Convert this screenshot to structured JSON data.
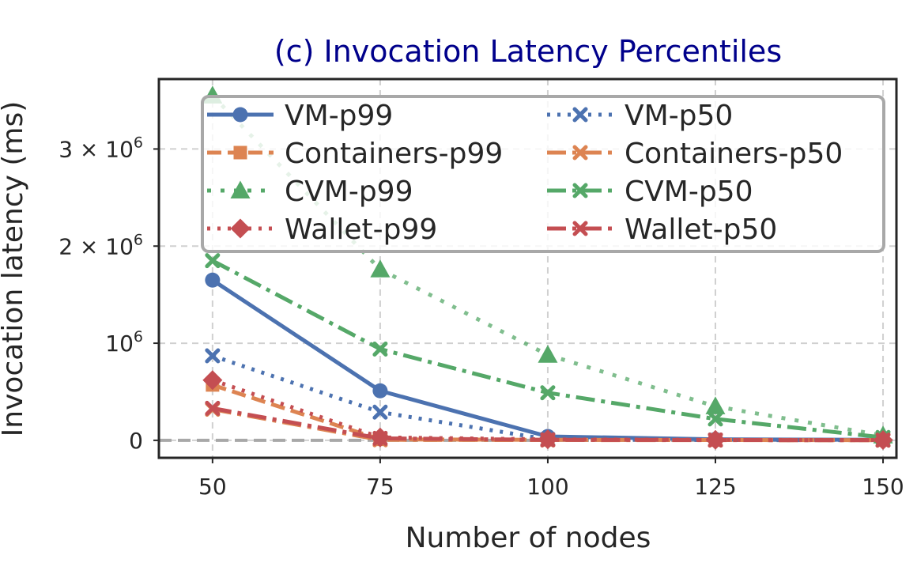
{
  "chart_data": {
    "type": "line",
    "title": "(c) Invocation Latency Percentiles",
    "xlabel": "Number of nodes",
    "ylabel": "Invocation latency (ms)",
    "x": [
      50,
      75,
      100,
      125,
      150
    ],
    "xlim": [
      42,
      152
    ],
    "ylim": [
      -180000,
      3720000
    ],
    "x_ticks": [
      "50",
      "75",
      "100",
      "125",
      "150"
    ],
    "y_ticks": [
      {
        "value": 0,
        "base": "0",
        "exp": ""
      },
      {
        "value": 1000000,
        "base": "10",
        "exp": "6"
      },
      {
        "value": 2000000,
        "base": "2 × 10",
        "exp": "6"
      },
      {
        "value": 3000000,
        "base": "3 × 10",
        "exp": "6"
      }
    ],
    "grid": true,
    "legend_position": "top-right",
    "series": [
      {
        "name": "VM-p99",
        "color": "#4c72b0",
        "marker": "circle",
        "dash": "solid",
        "values": [
          1650000,
          510000,
          40000,
          10000,
          5000
        ]
      },
      {
        "name": "VM-p50",
        "color": "#4c72b0",
        "marker": "x",
        "dash": "dotted",
        "values": [
          870000,
          290000,
          10000,
          3000,
          2000
        ]
      },
      {
        "name": "Containers-p99",
        "color": "#dd8452",
        "marker": "square",
        "dash": "dashed",
        "values": [
          570000,
          10000,
          5000,
          3000,
          2000
        ]
      },
      {
        "name": "Containers-p50",
        "color": "#dd8452",
        "marker": "x",
        "dash": "dashdot",
        "values": [
          320000,
          5000,
          3000,
          2000,
          1000
        ]
      },
      {
        "name": "CVM-p99",
        "color": "#55a868",
        "marker": "triangle",
        "dash": "dashdot-loose",
        "values": [
          3550000,
          1760000,
          880000,
          350000,
          50000
        ]
      },
      {
        "name": "CVM-p50",
        "color": "#55a868",
        "marker": "x",
        "dash": "dashdot",
        "values": [
          1850000,
          940000,
          490000,
          220000,
          30000
        ]
      },
      {
        "name": "Wallet-p99",
        "color": "#c44e52",
        "marker": "diamond",
        "dash": "dotted",
        "values": [
          620000,
          30000,
          10000,
          5000,
          3000
        ]
      },
      {
        "name": "Wallet-p50",
        "color": "#c44e52",
        "marker": "x",
        "dash": "dashdot",
        "values": [
          330000,
          20000,
          5000,
          3000,
          2000
        ]
      }
    ]
  }
}
